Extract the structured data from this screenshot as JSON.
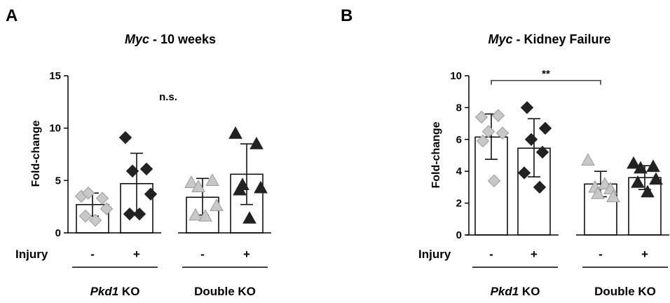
{
  "panels": [
    {
      "letter": "A",
      "title_gene": "Myc",
      "title_rest": " - 10 weeks",
      "ylabel": "Fold-change",
      "annotation": "n.s.",
      "row_label": "Injury",
      "groups": [
        {
          "gene": "Pkd1",
          "rest": " KO"
        },
        {
          "gene": "",
          "rest": "Double KO"
        }
      ],
      "chart_data": {
        "type": "bar",
        "title": "Myc - 10 weeks",
        "ylabel": "Fold-change",
        "ylim": [
          0,
          15
        ],
        "yticks": [
          0,
          5,
          10,
          15
        ],
        "categories": [
          "-",
          "+",
          "-",
          "+"
        ],
        "series": [
          {
            "group": "Pkd1 KO",
            "injury": "-",
            "marker": "diamond",
            "color": "#c8c8c8",
            "mean": 2.7,
            "sd_low": 1.6,
            "sd_high": 3.8,
            "points": [
              3.5,
              3.3,
              3.8,
              2.3,
              1.6,
              1.2
            ]
          },
          {
            "group": "Pkd1 KO",
            "injury": "+",
            "marker": "diamond",
            "color": "#222222",
            "mean": 4.7,
            "sd_low": 1.8,
            "sd_high": 7.6,
            "points": [
              9.1,
              6.1,
              5.9,
              3.7,
              1.8,
              1.8
            ]
          },
          {
            "group": "Double KO",
            "injury": "-",
            "marker": "triangle",
            "color": "#c8c8c8",
            "mean": 3.4,
            "sd_low": 1.7,
            "sd_high": 5.2,
            "points": [
              4.8,
              5.0,
              4.4,
              2.6,
              1.7,
              1.6
            ]
          },
          {
            "group": "Double KO",
            "injury": "+",
            "marker": "triangle",
            "color": "#222222",
            "mean": 5.6,
            "sd_low": 2.7,
            "sd_high": 8.5,
            "points": [
              9.5,
              8.5,
              4.6,
              4.3,
              4.1,
              1.4
            ]
          }
        ]
      }
    },
    {
      "letter": "B",
      "title_gene": "Myc",
      "title_rest": " - Kidney Failure",
      "ylabel": "Fold-change",
      "annotation": "**",
      "row_label": "Injury",
      "groups": [
        {
          "gene": "Pkd1",
          "rest": " KO"
        },
        {
          "gene": "",
          "rest": "Double KO"
        }
      ],
      "chart_data": {
        "type": "bar",
        "title": "Myc - Kidney Failure",
        "ylabel": "Fold-change",
        "ylim": [
          0,
          10
        ],
        "yticks": [
          0,
          2,
          4,
          6,
          8,
          10
        ],
        "categories": [
          "-",
          "+",
          "-",
          "+"
        ],
        "significance": {
          "label": "**",
          "from_bar": 0,
          "to_bar": 2,
          "y": 9.7
        },
        "series": [
          {
            "group": "Pkd1 KO",
            "injury": "-",
            "marker": "diamond",
            "color": "#c8c8c8",
            "mean": 6.15,
            "sd_low": 4.75,
            "sd_high": 7.6,
            "points": [
              7.4,
              7.5,
              6.5,
              6.4,
              5.9,
              3.4
            ]
          },
          {
            "group": "Pkd1 KO",
            "injury": "+",
            "marker": "diamond",
            "color": "#222222",
            "mean": 5.45,
            "sd_low": 3.65,
            "sd_high": 7.3,
            "points": [
              8.0,
              6.7,
              6.0,
              5.2,
              3.9,
              3.0
            ]
          },
          {
            "group": "Double KO",
            "injury": "-",
            "marker": "triangle",
            "color": "#c8c8c8",
            "mean": 3.2,
            "sd_low": 2.4,
            "sd_high": 4.0,
            "points": [
              4.7,
              3.2,
              3.0,
              2.9,
              2.6,
              2.4
            ]
          },
          {
            "group": "Double KO",
            "injury": "+",
            "marker": "triangle",
            "color": "#222222",
            "mean": 3.6,
            "sd_low": 2.85,
            "sd_high": 4.35,
            "points": [
              4.5,
              4.3,
              4.2,
              3.5,
              3.3,
              2.7
            ]
          }
        ]
      }
    }
  ]
}
